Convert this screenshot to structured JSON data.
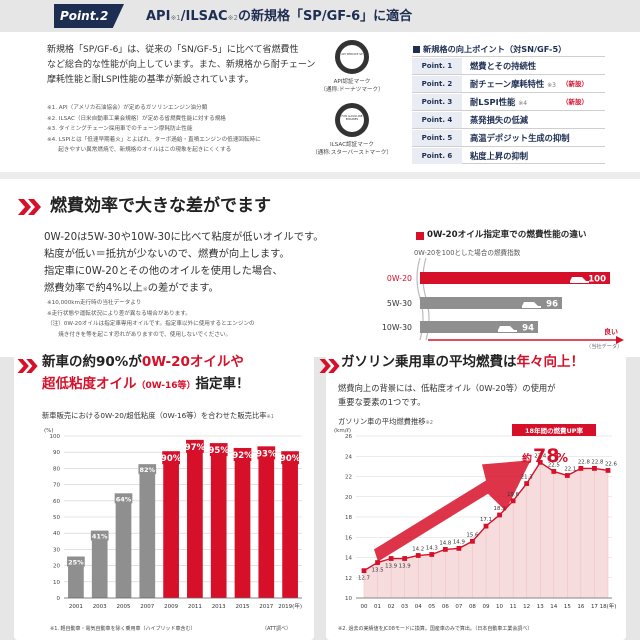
{
  "colors": {
    "navy": "#1d2e52",
    "red": "#d7102a",
    "gray": "#8f8f8f",
    "pink": "#f6dcdd"
  },
  "top": {
    "badge": "Point.2",
    "heading_pre": "API",
    "heading_note1": "※1",
    "heading_mid": "/ILSAC",
    "heading_note2": "※2",
    "heading_post": "の新規格「SP/GF-6」に適合",
    "body_lines": [
      "新規格「SP/GF-6」は、従来の「SN/GF-5」に比べて省燃費性",
      "など総合的な性能が向上しています。また、新規格から耐チェーン",
      "摩耗性能と耐LSPI性能の基準が新設されています。"
    ],
    "notes": [
      "※1. API（アメリカ石油協会）が定めるガソリンエンジン油分類",
      "※2. ILSAC（日米自動車工業会規格）が定める省燃費性能に対する規格",
      "※3. タイミングチェーン採用車でのチェーン摩耗防止性能",
      "※4. LSPIとは「低速早期着火」とよばれ、ターボ過給・直噴エンジンの低速回転時に",
      "　　起きやすい異常燃焼で、新規格のオイルはこの現象を起きにくくする"
    ],
    "mark1_caption_a": "API認証マーク",
    "mark1_caption_b": "（通称:ドーナツマーク）",
    "mark2_caption_a": "ILSAC認証マーク",
    "mark2_caption_b": "（通称:スターバーストマーク）",
    "mark1_text": "API SERVICE SP",
    "mark2_text": "FOR GASOLINE ENGINES"
  },
  "points": {
    "title": "新規格の向上ポイント（対SN/GF-5）",
    "items": [
      {
        "label": "Point. 1",
        "text": "燃費とその持続性",
        "note": "",
        "tag": ""
      },
      {
        "label": "Point. 2",
        "text": "耐チェーン摩耗特性",
        "note": "※3",
        "tag": "（新設）"
      },
      {
        "label": "Point. 3",
        "text": "耐LSPI性能",
        "note": "※4",
        "tag": "（新設）"
      },
      {
        "label": "Point. 4",
        "text": "蒸発損失の低減",
        "note": "",
        "tag": ""
      },
      {
        "label": "Point. 5",
        "text": "高温デポジット生成の抑制",
        "note": "",
        "tag": ""
      },
      {
        "label": "Point. 6",
        "text": "粘度上昇の抑制",
        "note": "",
        "tag": ""
      }
    ]
  },
  "fuel": {
    "heading": "燃費効率で大きな差がでます",
    "body_lines": [
      "0W-20は5W-30や10W-30に比べて粘度が低いオイルです。",
      "粘度が低い＝抵抗が少ないので、燃費が向上します。",
      "指定車に0W-20とその他のオイルを使用した場合、"
    ],
    "last_pre": "燃費効率で約4%以上",
    "last_note": "※",
    "last_post": "の差がでます。",
    "notes": [
      "※10,000km走行時の当社データより",
      "※走行状態や運転状況により差が異なる場合があります。",
      "（注）0W-20オイルは指定車専用オイルです。指定車以外に使用するとエンジンの",
      "　　焼き付きを等を起こす恐れがありますので、使用しないでください。"
    ],
    "chart_title": "0W-20オイル指定車での燃費性能の違い",
    "chart_sub": "0W-20を100とした場合の燃費指数",
    "good_label": "良い",
    "source": "（当社データ）"
  },
  "left": {
    "h1_a": "新車の約90%が",
    "h1_b": "0W-20オイルや",
    "h2_a": "超低粘度オイル",
    "h2_b": "（0W-16等）",
    "h2_c": "指定車！",
    "chart_title": "新車販売における0W-20/超低粘度（0W-16等）を合わせた販売比率",
    "chart_note": "※1",
    "foot": "※1. 軽自動車・電気自動車を除く乗用車（ハイブリッド車含む）",
    "source": "（ATT調べ）"
  },
  "right": {
    "h_a": "ガソリン乗用車の平均燃費は",
    "h_b": "年々向上！",
    "body_lines": [
      "燃費向上の背景には、低粘度オイル（0W-20等）の使用が",
      "重要な要素の1つです。"
    ],
    "chart_title": "ガソリン車の平均燃費推移",
    "chart_note": "※2",
    "banner": "18年間の燃費UP率",
    "pct_pre": "約",
    "pct": "78",
    "pct_post": "%",
    "foot": "※2. 過去の実績値をJC08モードに換算。国産車のみで算出。（日本自動車工業会調べ）"
  },
  "chart_data": [
    {
      "type": "bar",
      "title": "0W-20オイル指定車での燃費性能の違い",
      "categories": [
        "0W-20",
        "5W-30",
        "10W-30"
      ],
      "values": [
        100,
        96,
        94
      ]
    },
    {
      "type": "bar",
      "title": "新車販売における0W-20/超低粘度（0W-16等）を合わせた販売比率",
      "ylabel": "(%)",
      "ylim": [
        0,
        100
      ],
      "yticks": [
        "0",
        "10",
        "20",
        "30",
        "40",
        "50",
        "60",
        "70",
        "80",
        "90",
        "100"
      ],
      "categories": [
        "2001",
        "2003",
        "2005",
        "2007",
        "2009",
        "2011",
        "2013",
        "2015",
        "2017",
        "2019(年)"
      ],
      "values": [
        25,
        41,
        64,
        82,
        90,
        97,
        95,
        92,
        93,
        90
      ],
      "labels": [
        "25%",
        "41%",
        "64%",
        "82%",
        "90%",
        "97%",
        "95%",
        "92%",
        "93%",
        "90%"
      ]
    },
    {
      "type": "area",
      "title": "ガソリン車の平均燃費推移",
      "ylabel": "(km/ℓ)",
      "ylim": [
        10,
        26
      ],
      "yticks": [
        "10",
        "12",
        "14",
        "16",
        "18",
        "20",
        "22",
        "24",
        "26"
      ],
      "x": [
        "00",
        "01",
        "02",
        "03",
        "04",
        "05",
        "06",
        "07",
        "08",
        "09",
        "10",
        "11",
        "12",
        "13",
        "14",
        "15",
        "16",
        "17",
        "18(年)"
      ],
      "values": [
        12.7,
        13.5,
        13.9,
        13.9,
        14.2,
        14.3,
        14.8,
        14.9,
        15.6,
        17.1,
        18.2,
        19.6,
        21.3,
        23.4,
        22.5,
        22.1,
        22.8,
        22.8,
        22.6
      ],
      "labels": [
        "12.7",
        "13.5",
        "13.9",
        "13.9",
        "14.2",
        "14.3",
        "14.8",
        "14.9",
        "15.6",
        "17.1",
        "18.2",
        "19.6",
        "21.3",
        "23.4",
        "22.5",
        "22.1",
        "22.8",
        "22.8",
        "22.6"
      ]
    }
  ]
}
